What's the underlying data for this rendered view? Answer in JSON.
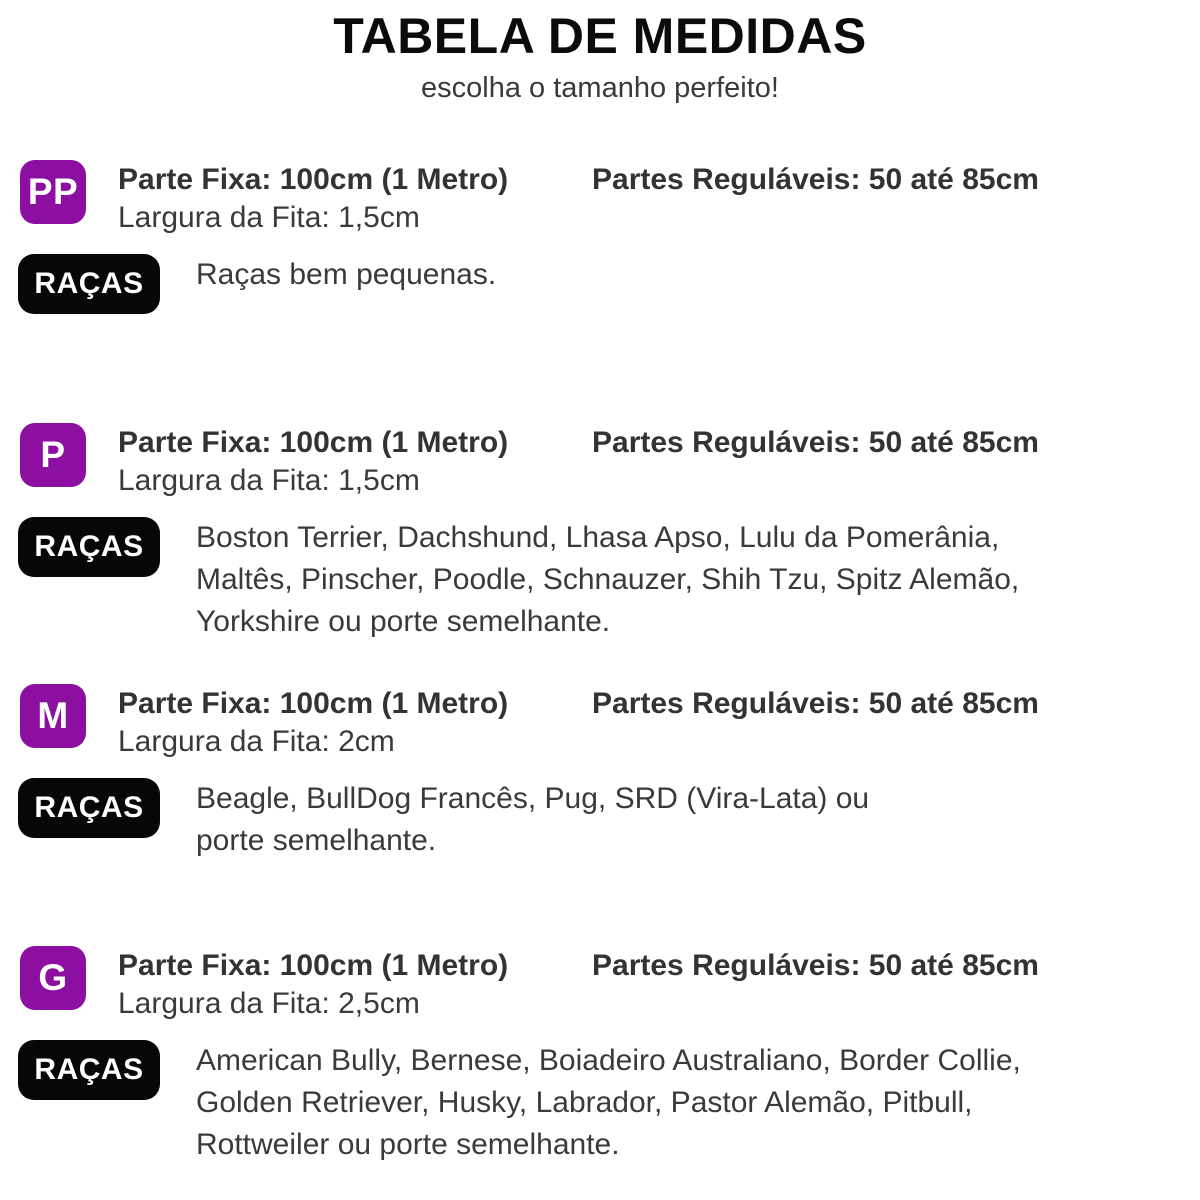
{
  "page": {
    "title": "TABELA DE MEDIDAS",
    "subtitle": "escolha o tamanho perfeito!"
  },
  "labels": {
    "racas": "RAÇAS"
  },
  "colors": {
    "accent_purple": "#8C0FA2",
    "badge_black": "#070707",
    "heading_text": "#333333",
    "body_text": "#3A3A3A",
    "title_text": "#0B0B0B",
    "background": "#FFFFFF"
  },
  "sizes": [
    {
      "code": "PP",
      "parte_fixa": "Parte Fixa: 100cm (1 Metro)",
      "partes_regulaveis": "Partes Reguláveis: 50 até 85cm",
      "largura": "Largura da Fita: 1,5cm",
      "breeds": "Raças bem pequenas."
    },
    {
      "code": "P",
      "parte_fixa": "Parte Fixa: 100cm (1 Metro)",
      "partes_regulaveis": "Partes Reguláveis: 50 até 85cm",
      "largura": "Largura da Fita: 1,5cm",
      "breeds": "Boston Terrier, Dachshund, Lhasa Apso, Lulu da Pomerânia,\nMaltês, Pinscher, Poodle, Schnauzer, Shih Tzu, Spitz Alemão,\nYorkshire ou porte semelhante."
    },
    {
      "code": "M",
      "parte_fixa": "Parte Fixa: 100cm (1 Metro)",
      "partes_regulaveis": "Partes Reguláveis: 50 até 85cm",
      "largura": "Largura da Fita: 2cm",
      "breeds": "Beagle, BullDog Francês, Pug, SRD (Vira-Lata) ou\nporte semelhante."
    },
    {
      "code": "G",
      "parte_fixa": "Parte Fixa: 100cm (1 Metro)",
      "partes_regulaveis": "Partes Reguláveis: 50 até 85cm",
      "largura": "Largura da Fita: 2,5cm",
      "breeds": "American Bully, Bernese, Boiadeiro Australiano, Border Collie,\nGolden Retriever, Husky, Labrador, Pastor Alemão, Pitbull,\nRottweiler ou porte semelhante."
    }
  ]
}
